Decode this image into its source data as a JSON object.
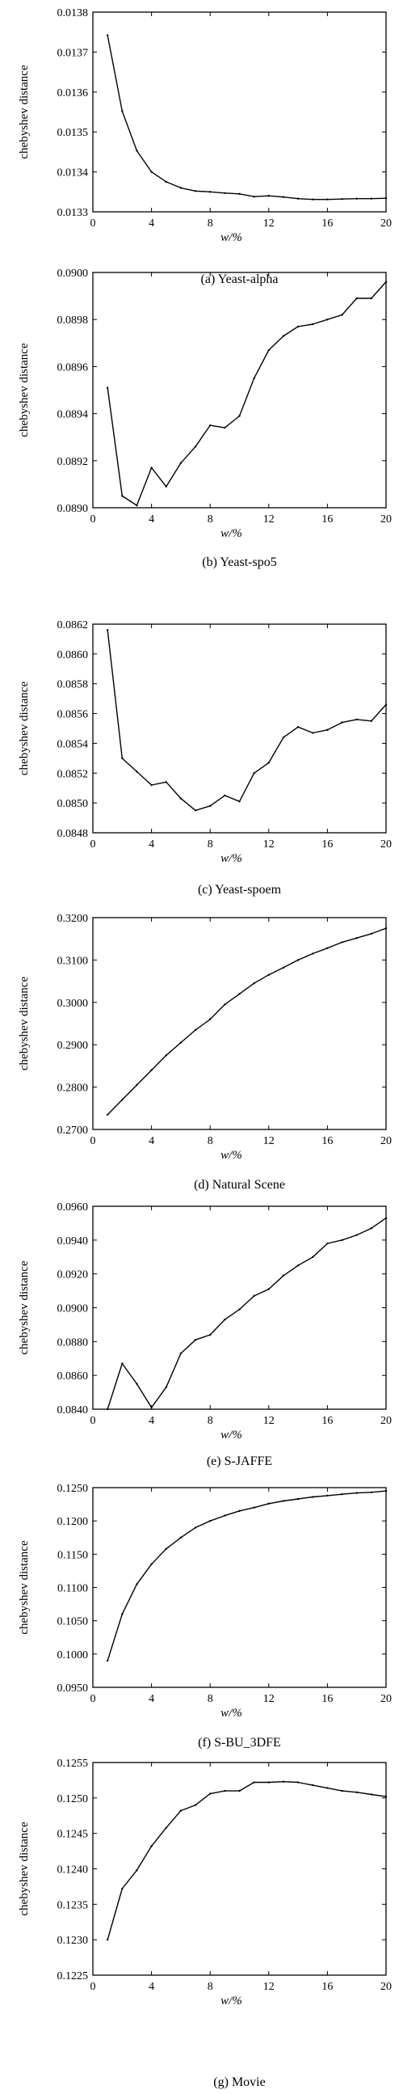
{
  "chart_data": [
    {
      "type": "line",
      "caption": "(a) Yeast-alpha",
      "xlabel": "w/%",
      "ylabel": "chebyshev distance",
      "xlim": [
        0,
        20
      ],
      "ylim": [
        0.0133,
        0.0138
      ],
      "xticks": [
        "0",
        "4",
        "8",
        "12",
        "16",
        "20"
      ],
      "yticks": [
        "0.0133",
        "0.0134",
        "0.0135",
        "0.0136",
        "0.0137",
        "0.0138"
      ],
      "x": [
        1,
        2,
        3,
        4,
        5,
        6,
        7,
        8,
        9,
        10,
        11,
        12,
        13,
        14,
        15,
        16,
        17,
        18,
        19,
        20
      ],
      "values": [
        0.013742,
        0.013552,
        0.013453,
        0.0134,
        0.013375,
        0.01336,
        0.013352,
        0.01335,
        0.013347,
        0.013345,
        0.013338,
        0.01334,
        0.013337,
        0.013333,
        0.013331,
        0.013331,
        0.013332,
        0.013333,
        0.013333,
        0.013334
      ]
    },
    {
      "type": "line",
      "caption": "(b) Yeast-spo5",
      "xlabel": "w/%",
      "ylabel": "chebyshev distance",
      "xlim": [
        0,
        20
      ],
      "ylim": [
        0.089,
        0.09
      ],
      "xticks": [
        "0",
        "4",
        "8",
        "12",
        "16",
        "20"
      ],
      "yticks": [
        "0.0890",
        "0.0892",
        "0.0894",
        "0.0896",
        "0.0898",
        "0.0900"
      ],
      "x": [
        1,
        2,
        3,
        4,
        5,
        6,
        7,
        8,
        9,
        10,
        11,
        12,
        13,
        14,
        15,
        16,
        17,
        18,
        19,
        20
      ],
      "values": [
        0.08951,
        0.08905,
        0.08901,
        0.08917,
        0.08909,
        0.08919,
        0.08926,
        0.08935,
        0.08934,
        0.08939,
        0.08955,
        0.08967,
        0.08973,
        0.08977,
        0.08978,
        0.0898,
        0.08982,
        0.08989,
        0.08989,
        0.08996
      ]
    },
    {
      "type": "line",
      "caption": "(c) Yeast-spoem",
      "xlabel": "w/%",
      "ylabel": "chebyshev distance",
      "xlim": [
        0,
        20
      ],
      "ylim": [
        0.0848,
        0.0862
      ],
      "xticks": [
        "0",
        "4",
        "8",
        "12",
        "16",
        "20"
      ],
      "yticks": [
        "0.0848",
        "0.0850",
        "0.0852",
        "0.0854",
        "0.0856",
        "0.0858",
        "0.0860",
        "0.0862"
      ],
      "x": [
        1,
        2,
        3,
        4,
        5,
        6,
        7,
        8,
        9,
        10,
        11,
        12,
        13,
        14,
        15,
        16,
        17,
        18,
        19,
        20
      ],
      "values": [
        0.08616,
        0.0853,
        0.08521,
        0.08512,
        0.08514,
        0.08503,
        0.08495,
        0.08498,
        0.08505,
        0.08501,
        0.0852,
        0.08527,
        0.08544,
        0.08551,
        0.08547,
        0.08549,
        0.08554,
        0.08556,
        0.08555,
        0.08566
      ]
    },
    {
      "type": "line",
      "caption": "(d) Natural Scene",
      "xlabel": "w/%",
      "ylabel": "chebyshev distance",
      "xlim": [
        0,
        20
      ],
      "ylim": [
        0.27,
        0.32
      ],
      "xticks": [
        "0",
        "4",
        "8",
        "12",
        "16",
        "20"
      ],
      "yticks": [
        "0.2700",
        "0.2800",
        "0.2900",
        "0.3000",
        "0.3100",
        "0.3200"
      ],
      "x": [
        1,
        2,
        3,
        4,
        5,
        6,
        7,
        8,
        9,
        10,
        11,
        12,
        13,
        14,
        15,
        16,
        17,
        18,
        19,
        20
      ],
      "values": [
        0.2735,
        0.277,
        0.2805,
        0.284,
        0.2875,
        0.2905,
        0.2935,
        0.296,
        0.2995,
        0.302,
        0.3045,
        0.3065,
        0.3082,
        0.31,
        0.3115,
        0.3128,
        0.3142,
        0.3152,
        0.3162,
        0.3175
      ]
    },
    {
      "type": "line",
      "caption": "(e) S-JAFFE",
      "xlabel": "w/%",
      "ylabel": "chebyshev distance",
      "xlim": [
        0,
        20
      ],
      "ylim": [
        0.084,
        0.096
      ],
      "xticks": [
        "0",
        "4",
        "8",
        "12",
        "16",
        "20"
      ],
      "yticks": [
        "0.0840",
        "0.0860",
        "0.0880",
        "0.0900",
        "0.0920",
        "0.0940",
        "0.0960"
      ],
      "x": [
        1,
        2,
        3,
        4,
        5,
        6,
        7,
        8,
        9,
        10,
        11,
        12,
        13,
        14,
        15,
        16,
        17,
        18,
        19,
        20
      ],
      "values": [
        0.084,
        0.0867,
        0.0855,
        0.0841,
        0.0853,
        0.0873,
        0.0881,
        0.0884,
        0.0893,
        0.0899,
        0.0907,
        0.0911,
        0.0919,
        0.0925,
        0.093,
        0.0938,
        0.094,
        0.0943,
        0.0947,
        0.0953
      ]
    },
    {
      "type": "line",
      "caption": "(f) S-BU_3DFE",
      "xlabel": "w/%",
      "ylabel": "chebyshev distance",
      "xlim": [
        0,
        20
      ],
      "ylim": [
        0.095,
        0.125
      ],
      "xticks": [
        "0",
        "4",
        "8",
        "12",
        "16",
        "20"
      ],
      "yticks": [
        "0.0950",
        "0.1000",
        "0.1050",
        "0.1100",
        "0.1150",
        "0.1200",
        "0.1250"
      ],
      "x": [
        1,
        2,
        3,
        4,
        5,
        6,
        7,
        8,
        9,
        10,
        11,
        12,
        13,
        14,
        15,
        16,
        17,
        18,
        19,
        20
      ],
      "values": [
        0.099,
        0.106,
        0.1105,
        0.1135,
        0.1158,
        0.1175,
        0.119,
        0.12,
        0.1208,
        0.1215,
        0.122,
        0.1226,
        0.123,
        0.1233,
        0.1236,
        0.1238,
        0.124,
        0.1242,
        0.1243,
        0.1245
      ]
    },
    {
      "type": "line",
      "caption": "(g) Movie",
      "xlabel": "w/%",
      "ylabel": "chebyshev distance",
      "xlim": [
        0,
        20
      ],
      "ylim": [
        0.1225,
        0.1255
      ],
      "xticks": [
        "0",
        "4",
        "8",
        "12",
        "16",
        "20"
      ],
      "yticks": [
        "0.1225",
        "0.1230",
        "0.1235",
        "0.1240",
        "0.1245",
        "0.1250",
        "0.1255"
      ],
      "x": [
        1,
        2,
        3,
        4,
        5,
        6,
        7,
        8,
        9,
        10,
        11,
        12,
        13,
        14,
        15,
        16,
        17,
        18,
        19,
        20
      ],
      "values": [
        0.123,
        0.12372,
        0.12398,
        0.12432,
        0.12458,
        0.12482,
        0.1249,
        0.12506,
        0.1251,
        0.1251,
        0.12522,
        0.12522,
        0.12523,
        0.12522,
        0.12518,
        0.12514,
        0.1251,
        0.12508,
        0.12505,
        0.12502
      ]
    }
  ]
}
